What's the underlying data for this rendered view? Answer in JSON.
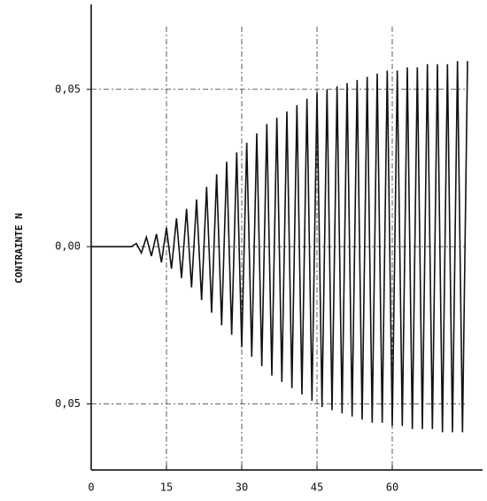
{
  "chart_data": {
    "type": "line",
    "y_label": "CONTRAINTE N",
    "x": [
      0,
      1,
      2,
      3,
      4,
      5,
      6,
      7,
      8,
      9,
      10,
      11,
      12,
      13,
      14,
      15,
      16,
      17,
      18,
      19,
      20,
      21,
      22,
      23,
      24,
      25,
      26,
      27,
      28,
      29,
      30,
      31,
      32,
      33,
      34,
      35,
      36,
      37,
      38,
      39,
      40,
      41,
      42,
      43,
      44,
      45,
      46,
      47,
      48,
      49,
      50,
      51,
      52,
      53,
      54,
      55,
      56,
      57,
      58,
      59,
      60,
      61,
      62,
      63,
      64,
      65,
      66,
      67,
      68,
      69,
      70,
      71,
      72,
      73,
      74,
      75
    ],
    "series": [
      {
        "color": "#111111",
        "values": [
          0,
          0,
          0,
          0,
          0,
          0,
          0,
          0,
          0,
          0.001,
          -0.002,
          0.003,
          -0.003,
          0.004,
          -0.005,
          0.006,
          -0.007,
          0.009,
          -0.01,
          0.012,
          -0.013,
          0.015,
          -0.017,
          0.019,
          -0.021,
          0.023,
          -0.025,
          0.027,
          -0.028,
          0.03,
          -0.032,
          0.033,
          -0.035,
          0.036,
          -0.038,
          0.039,
          -0.041,
          0.041,
          -0.043,
          0.043,
          -0.045,
          0.045,
          -0.047,
          0.047,
          -0.049,
          0.049,
          -0.051,
          0.05,
          -0.052,
          0.051,
          -0.053,
          0.052,
          -0.054,
          0.053,
          -0.055,
          0.054,
          -0.056,
          0.055,
          -0.056,
          0.056,
          -0.057,
          0.056,
          -0.057,
          0.057,
          -0.058,
          0.057,
          -0.058,
          0.058,
          -0.058,
          0.058,
          -0.059,
          0.058,
          -0.059,
          0.059,
          -0.059,
          0.059
        ]
      }
    ],
    "xlim": [
      0,
      78
    ],
    "xticks": [
      0,
      15,
      30,
      45,
      60
    ],
    "ylim": [
      -0.071,
      0.077
    ],
    "yticks": [
      {
        "value": -0.05,
        "label": "0,05"
      },
      {
        "value": 0,
        "label": "0,00"
      },
      {
        "value": 0.05,
        "label": "0,05"
      }
    ],
    "grid": true
  }
}
